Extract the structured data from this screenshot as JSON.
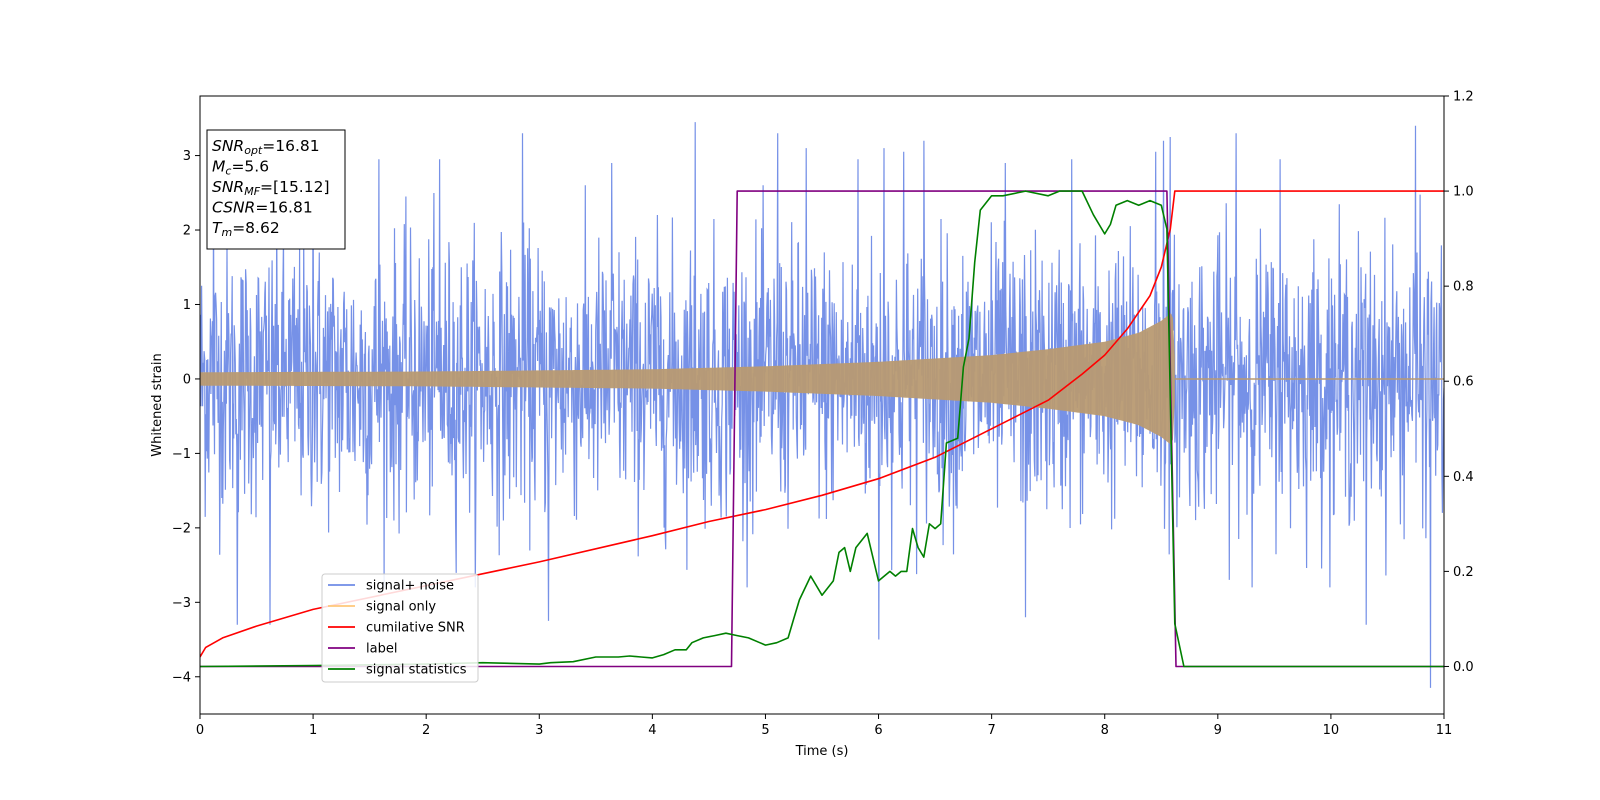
{
  "chart_data": {
    "type": "line",
    "xlabel": "Time (s)",
    "ylabel": "Whitened strain",
    "xlim": [
      0,
      11
    ],
    "ylim_left": [
      -4.5,
      3.8
    ],
    "ylim_right": [
      -0.1,
      1.2
    ],
    "x_ticks": [
      "0",
      "1",
      "2",
      "3",
      "4",
      "5",
      "6",
      "7",
      "8",
      "9",
      "10",
      "11"
    ],
    "y_left_ticks": [
      "3",
      "2",
      "1",
      "0",
      "−1",
      "−2",
      "−3",
      "−4"
    ],
    "y_right_ticks": [
      "1.2",
      "1.0",
      "0.8",
      "0.6",
      "0.4",
      "0.2",
      "0.0"
    ],
    "info_box": {
      "lines": [
        {
          "sym": "SNR",
          "sub": "opt",
          "val": "=16.81"
        },
        {
          "sym": "M",
          "sub": "c",
          "val": "=5.6"
        },
        {
          "sym": "SNR",
          "sub": "MF",
          "val": "=[15.12]"
        },
        {
          "sym": "CSNR",
          "sub": "",
          "val": "=16.81"
        },
        {
          "sym": "T",
          "sub": "m",
          "val": "=8.62"
        }
      ]
    },
    "legend": {
      "position": "lower-left",
      "entries": [
        {
          "label": "signal+ noise",
          "color": "#6f8be6"
        },
        {
          "label": "signal only",
          "color": "#ffc77a"
        },
        {
          "label": "cumilative SNR",
          "color": "#ff0000"
        },
        {
          "label": "label",
          "color": "#800080"
        },
        {
          "label": "signal statistics",
          "color": "#008000"
        }
      ]
    },
    "series": [
      {
        "name": "signal+ noise",
        "axis": "left",
        "color": "#6f8be6",
        "noise_sigma": 0.9,
        "peaks": [
          [
            0.12,
            2.45
          ],
          [
            0.33,
            -3.3
          ],
          [
            0.62,
            -3.3
          ],
          [
            1.0,
            2.8
          ],
          [
            1.58,
            2.95
          ],
          [
            2.12,
            2.95
          ],
          [
            2.85,
            3.3
          ],
          [
            3.08,
            -3.25
          ],
          [
            3.64,
            2.9
          ],
          [
            4.38,
            3.45
          ],
          [
            5.11,
            3.3
          ],
          [
            5.36,
            3.1
          ],
          [
            5.82,
            2.95
          ],
          [
            6.0,
            -3.5
          ],
          [
            6.05,
            3.1
          ],
          [
            6.22,
            3.05
          ],
          [
            6.4,
            3.2
          ],
          [
            7.12,
            2.9
          ],
          [
            7.3,
            -3.2
          ],
          [
            7.71,
            2.95
          ],
          [
            8.45,
            3.05
          ],
          [
            8.52,
            3.2
          ],
          [
            8.58,
            3.25
          ],
          [
            9.16,
            3.3
          ],
          [
            9.55,
            2.95
          ],
          [
            10.31,
            -3.3
          ],
          [
            10.75,
            3.4
          ],
          [
            10.88,
            -4.15
          ]
        ]
      },
      {
        "name": "signal only",
        "axis": "left",
        "color": "#ffc77a",
        "envelope": [
          [
            0,
            0.09
          ],
          [
            2,
            0.1
          ],
          [
            4,
            0.13
          ],
          [
            5,
            0.17
          ],
          [
            6,
            0.23
          ],
          [
            7,
            0.32
          ],
          [
            7.5,
            0.4
          ],
          [
            8,
            0.5
          ],
          [
            8.3,
            0.62
          ],
          [
            8.5,
            0.78
          ],
          [
            8.6,
            0.9
          ],
          [
            8.63,
            0
          ]
        ],
        "end_time": 8.62
      },
      {
        "name": "cumilative SNR",
        "axis": "right",
        "color": "#ff0000",
        "x": [
          0,
          0.05,
          0.2,
          0.5,
          1,
          2,
          3,
          4,
          4.5,
          5,
          5.5,
          6,
          6.5,
          7,
          7.5,
          7.8,
          8.0,
          8.2,
          8.4,
          8.5,
          8.58,
          8.62,
          11
        ],
        "y": [
          0.02,
          0.04,
          0.06,
          0.085,
          0.12,
          0.17,
          0.22,
          0.275,
          0.305,
          0.33,
          0.36,
          0.395,
          0.44,
          0.5,
          0.56,
          0.615,
          0.655,
          0.71,
          0.78,
          0.84,
          0.92,
          1.0,
          1.0
        ]
      },
      {
        "name": "label",
        "axis": "right",
        "color": "#800080",
        "x": [
          0,
          4.7,
          4.75,
          8.55,
          8.63,
          11
        ],
        "y": [
          0,
          0,
          1,
          1,
          0,
          0
        ]
      },
      {
        "name": "signal statistics",
        "axis": "right",
        "color": "#008000",
        "x": [
          0,
          1,
          2,
          2.5,
          3,
          3.1,
          3.3,
          3.5,
          3.7,
          3.8,
          3.9,
          4.0,
          4.1,
          4.2,
          4.3,
          4.35,
          4.45,
          4.55,
          4.65,
          4.75,
          4.85,
          4.95,
          5.0,
          5.1,
          5.2,
          5.25,
          5.3,
          5.4,
          5.5,
          5.6,
          5.65,
          5.7,
          5.75,
          5.8,
          5.9,
          6.0,
          6.1,
          6.15,
          6.2,
          6.25,
          6.3,
          6.35,
          6.4,
          6.45,
          6.5,
          6.55,
          6.6,
          6.7,
          6.75,
          6.8,
          6.85,
          6.9,
          7.0,
          7.1,
          7.3,
          7.5,
          7.6,
          7.8,
          7.9,
          8.0,
          8.05,
          8.1,
          8.2,
          8.3,
          8.4,
          8.5,
          8.55,
          8.62,
          8.7,
          11
        ],
        "y": [
          0,
          0.002,
          0.005,
          0.008,
          0.005,
          0.008,
          0.01,
          0.02,
          0.02,
          0.022,
          0.02,
          0.018,
          0.025,
          0.035,
          0.035,
          0.05,
          0.06,
          0.065,
          0.07,
          0.065,
          0.06,
          0.05,
          0.045,
          0.05,
          0.06,
          0.1,
          0.14,
          0.19,
          0.15,
          0.18,
          0.24,
          0.25,
          0.2,
          0.25,
          0.28,
          0.18,
          0.2,
          0.19,
          0.2,
          0.2,
          0.29,
          0.25,
          0.23,
          0.3,
          0.29,
          0.3,
          0.47,
          0.48,
          0.63,
          0.69,
          0.85,
          0.96,
          0.99,
          0.99,
          1.0,
          0.99,
          1.0,
          1.0,
          0.95,
          0.91,
          0.93,
          0.97,
          0.98,
          0.97,
          0.98,
          0.97,
          0.92,
          0.09,
          0.0,
          0.0
        ]
      }
    ]
  }
}
